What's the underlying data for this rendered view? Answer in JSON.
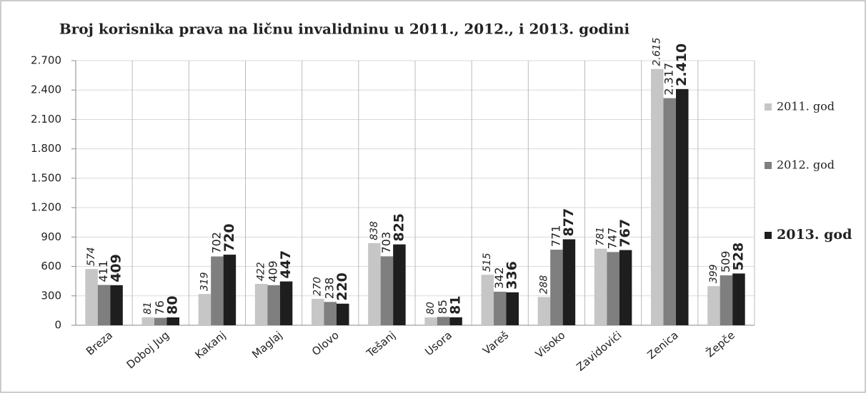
{
  "chart_data": {
    "type": "bar",
    "title": "Broj korisnika prava na ličnu invalidninu  u 2011., 2012., i 2013. godini",
    "categories": [
      "Breza",
      "Doboj Jug",
      "Kakanj",
      "Maglaj",
      "Olovo",
      "Tešanj",
      "Usora",
      "Vareš",
      "Visoko",
      "Zavidovići",
      "Zenica",
      "Žepče"
    ],
    "series": [
      {
        "name": "2011. god",
        "color": "#c6c6c6",
        "values": [
          574,
          81,
          319,
          422,
          270,
          838,
          80,
          515,
          288,
          781,
          2615,
          399
        ],
        "value_labels": [
          "574",
          "81",
          "319",
          "422",
          "270",
          "838",
          "80",
          "515",
          "288",
          "781",
          "2.615",
          "399"
        ]
      },
      {
        "name": "2012. god",
        "color": "#7f7f7f",
        "values": [
          411,
          76,
          702,
          409,
          238,
          703,
          85,
          342,
          771,
          747,
          2317,
          509
        ],
        "value_labels": [
          "411",
          "76",
          "702",
          "409",
          "238",
          "703",
          "85",
          "342",
          "771",
          "747",
          "2.317",
          "509"
        ]
      },
      {
        "name": "2013. god",
        "color": "#1e1e1e",
        "values": [
          409,
          80,
          720,
          447,
          220,
          825,
          81,
          336,
          877,
          767,
          2410,
          528
        ],
        "value_labels": [
          "409",
          "80",
          "720",
          "447",
          "220",
          "825",
          "81",
          "336",
          "877",
          "767",
          "2.410",
          "528"
        ]
      }
    ],
    "ylim": [
      0,
      2700
    ],
    "yticks": [
      0,
      300,
      600,
      900,
      {
        "value": 1200,
        "label": "1.200"
      },
      {
        "value": 1500,
        "label": "1.500"
      },
      {
        "value": 1800,
        "label": "1.800"
      },
      {
        "value": 2100,
        "label": "2.100"
      },
      {
        "value": 2400,
        "label": "2.400"
      },
      {
        "value": 2700,
        "label": "2.700"
      }
    ],
    "grid": true,
    "legend": "right"
  }
}
